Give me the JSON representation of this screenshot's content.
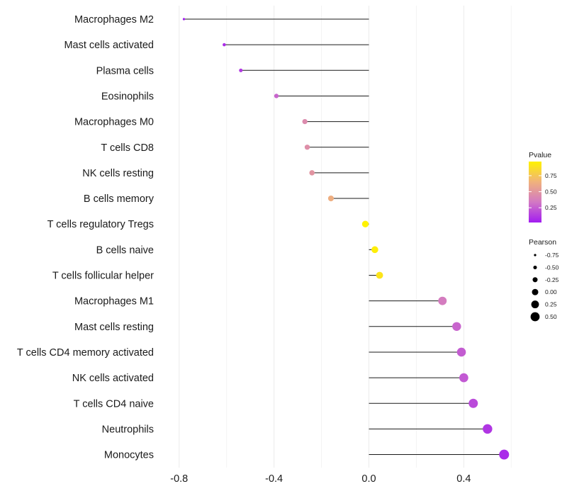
{
  "chart_data": {
    "type": "lollipop",
    "title": "",
    "xlabel": "",
    "ylabel": "",
    "xlim": [
      -0.88,
      0.62
    ],
    "xticks": [
      -0.8,
      -0.4,
      0.0,
      0.4
    ],
    "xtick_labels": [
      "-0.8",
      "-0.4",
      "0.0",
      "0.4"
    ],
    "grid": true,
    "series": [
      {
        "name": "Macrophages M2",
        "pearson": -0.78,
        "pvalue": 0.02
      },
      {
        "name": "Mast cells activated",
        "pearson": -0.61,
        "pvalue": 0.08
      },
      {
        "name": "Plasma cells",
        "pearson": -0.54,
        "pvalue": 0.12
      },
      {
        "name": "Eosinophils",
        "pearson": -0.39,
        "pvalue": 0.27
      },
      {
        "name": "Macrophages M0",
        "pearson": -0.27,
        "pvalue": 0.44
      },
      {
        "name": "T cells CD8",
        "pearson": -0.26,
        "pvalue": 0.46
      },
      {
        "name": "NK cells resting",
        "pearson": -0.24,
        "pvalue": 0.49
      },
      {
        "name": "B cells memory",
        "pearson": -0.16,
        "pvalue": 0.63
      },
      {
        "name": "T cells regulatory  Tregs ",
        "pearson": -0.015,
        "pvalue": 0.97
      },
      {
        "name": "B cells naive",
        "pearson": 0.025,
        "pvalue": 0.95
      },
      {
        "name": "T cells follicular helper",
        "pearson": 0.045,
        "pvalue": 0.9
      },
      {
        "name": "Macrophages M1",
        "pearson": 0.31,
        "pvalue": 0.36
      },
      {
        "name": "Mast cells resting",
        "pearson": 0.37,
        "pvalue": 0.27
      },
      {
        "name": "T cells CD4 memory activated",
        "pearson": 0.39,
        "pvalue": 0.24
      },
      {
        "name": "NK cells activated",
        "pearson": 0.4,
        "pvalue": 0.23
      },
      {
        "name": "T cells CD4 naive",
        "pearson": 0.44,
        "pvalue": 0.18
      },
      {
        "name": "Neutrophils",
        "pearson": 0.5,
        "pvalue": 0.11
      },
      {
        "name": "Monocytes",
        "pearson": 0.57,
        "pvalue": 0.07
      }
    ],
    "legend_pvalue": {
      "title": "Pvalue",
      "ticks": [
        0.75,
        0.5,
        0.25
      ],
      "tick_labels": [
        "0.75",
        "0.50",
        "0.25"
      ],
      "range": [
        0.02,
        0.97
      ],
      "colors": [
        "#a21cf0",
        "#d278c4",
        "#f0b27c",
        "#fff200"
      ]
    },
    "legend_pearson": {
      "title": "Pearson",
      "values": [
        -0.75,
        -0.5,
        -0.25,
        0.0,
        0.25,
        0.5
      ],
      "labels": [
        "-0.75",
        "-0.50",
        "-0.25",
        "0.00",
        "0.25",
        "0.50"
      ]
    }
  }
}
